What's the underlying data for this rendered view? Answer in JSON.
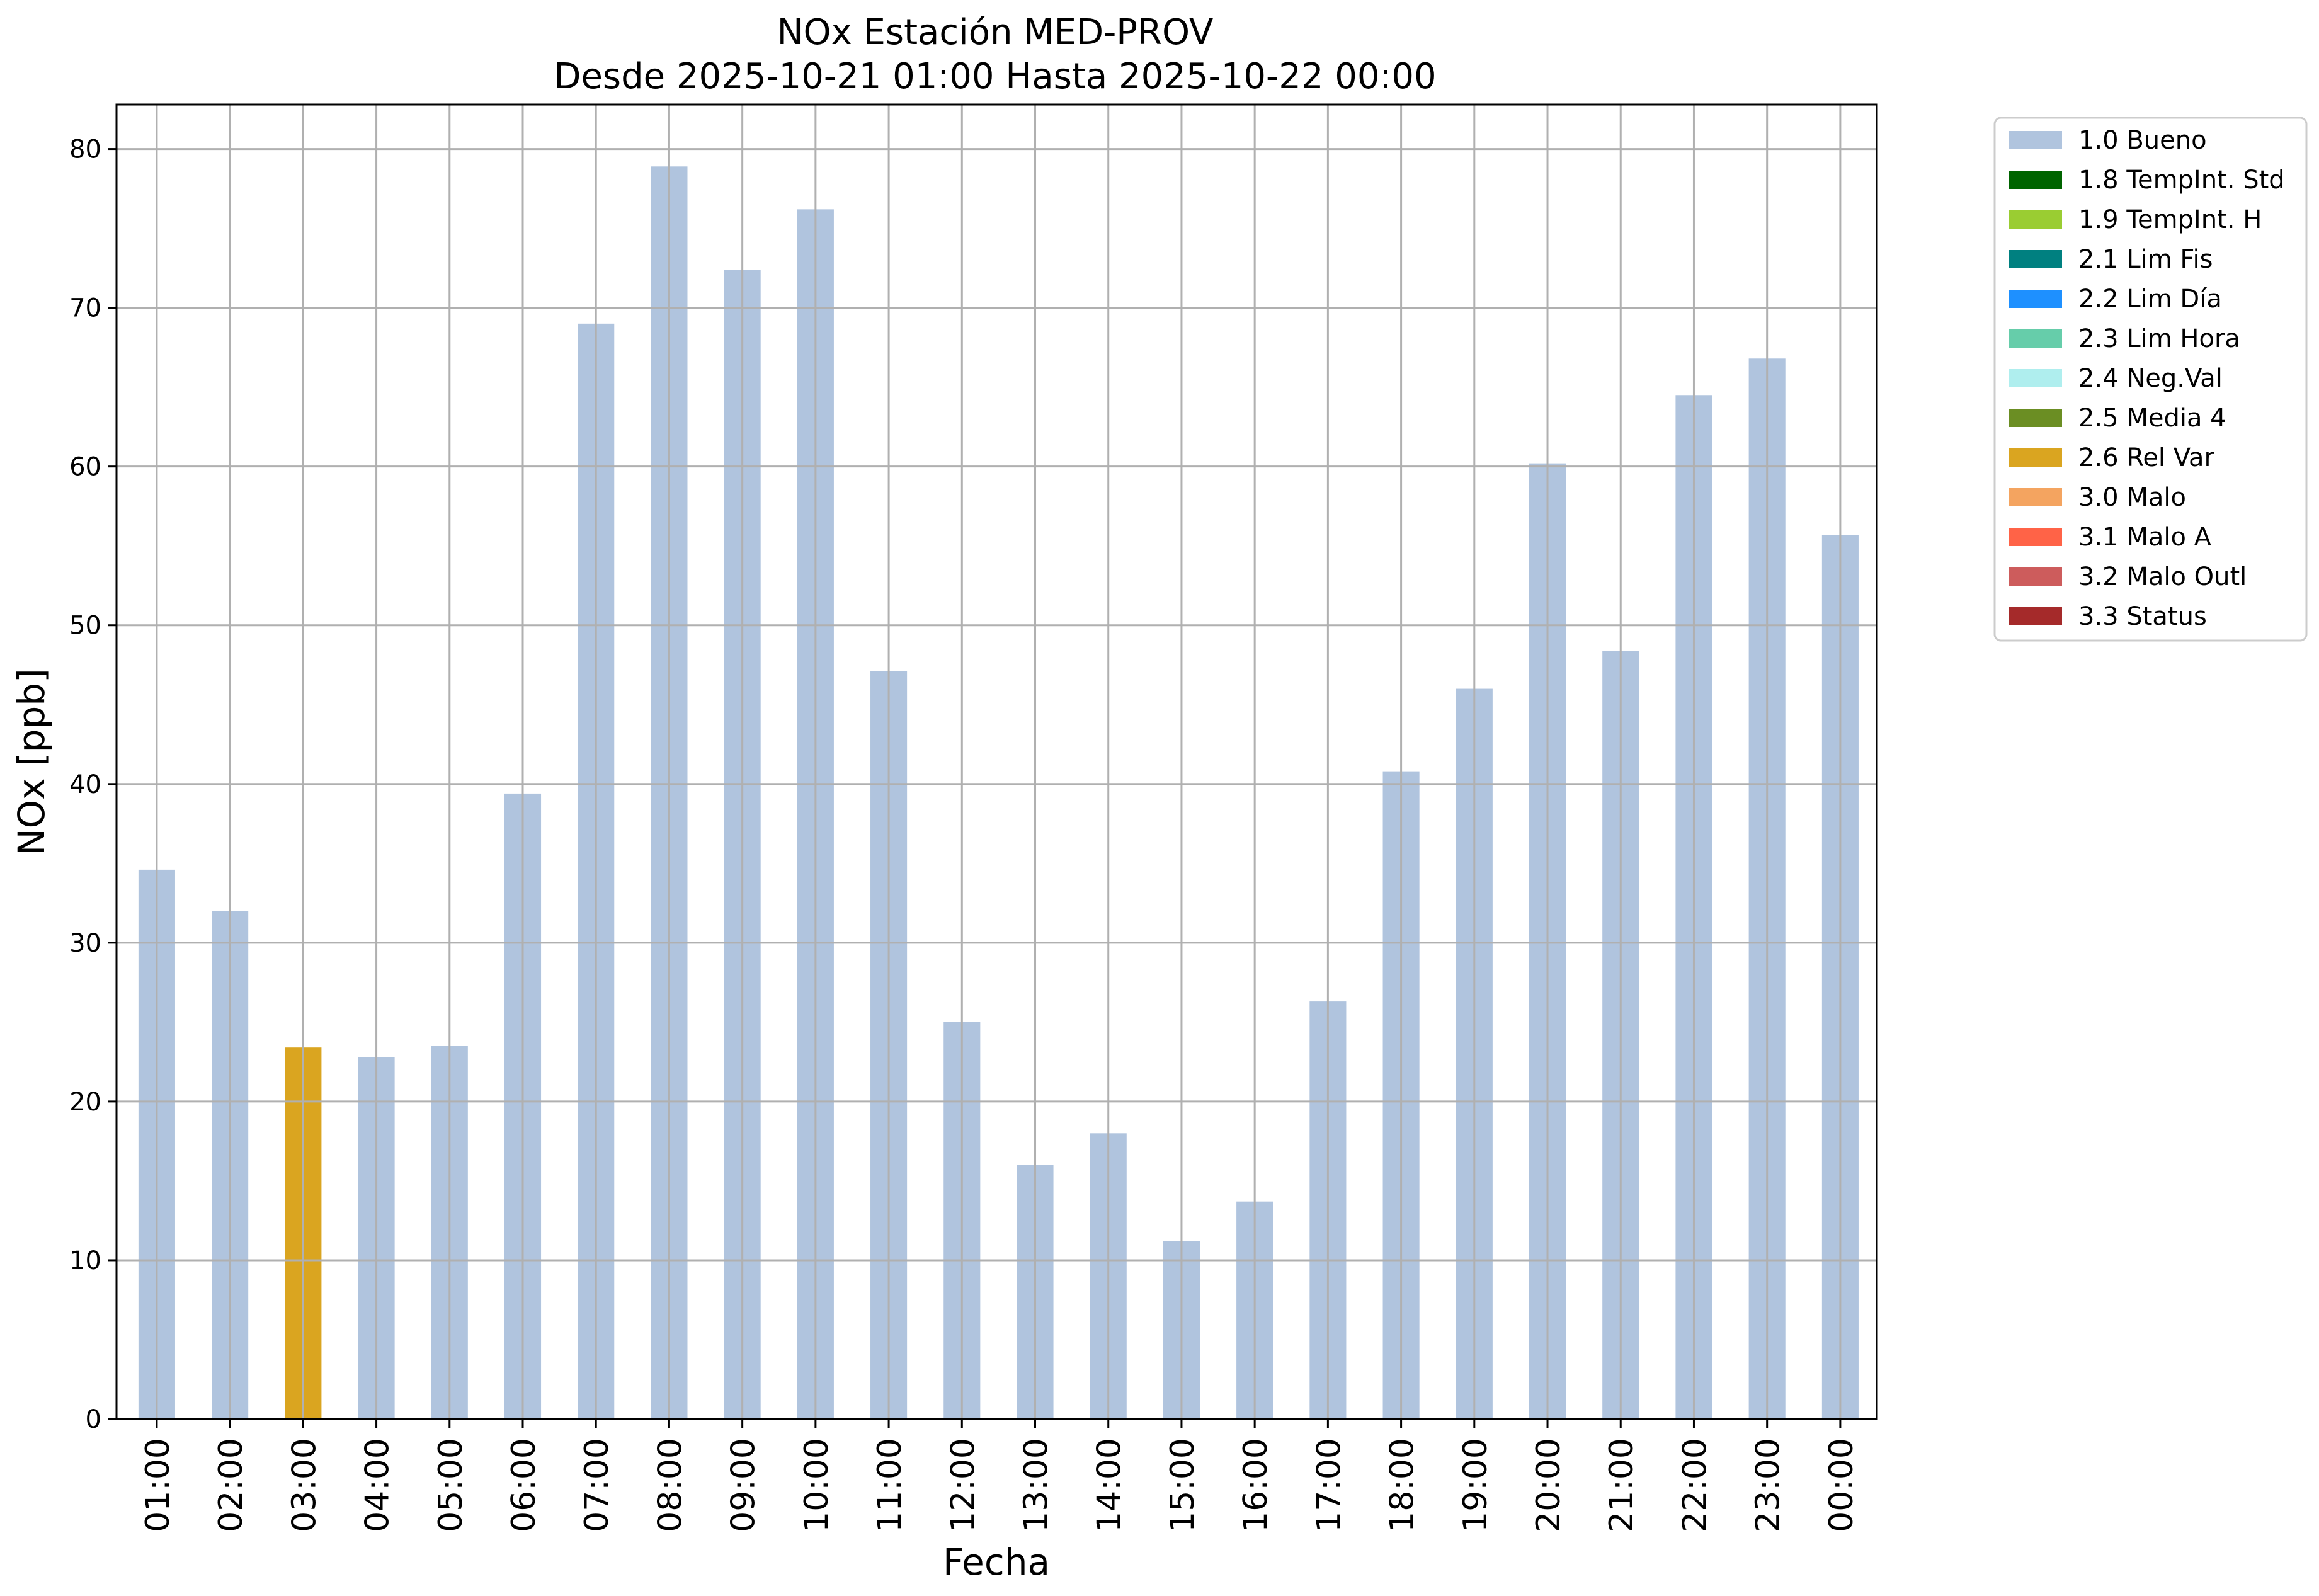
{
  "chart_data": {
    "type": "bar",
    "title": "NOx Estación MED-PROV",
    "subtitle": "Desde 2025-10-21 01:00 Hasta 2025-10-22 00:00",
    "xlabel": "Fecha",
    "ylabel": "NOx [ppb]",
    "ylim": [
      0,
      82.8
    ],
    "yticks": [
      0,
      10,
      20,
      30,
      40,
      50,
      60,
      70,
      80
    ],
    "grid": true,
    "legend_position": "outside-right",
    "categories": [
      "01:00",
      "02:00",
      "03:00",
      "04:00",
      "05:00",
      "06:00",
      "07:00",
      "08:00",
      "09:00",
      "10:00",
      "11:00",
      "12:00",
      "13:00",
      "14:00",
      "15:00",
      "16:00",
      "17:00",
      "18:00",
      "19:00",
      "20:00",
      "21:00",
      "22:00",
      "23:00",
      "00:00"
    ],
    "values": [
      34.6,
      32.0,
      23.4,
      22.8,
      23.5,
      39.4,
      69.0,
      78.9,
      72.4,
      76.2,
      47.1,
      25.0,
      16.0,
      18.0,
      11.2,
      13.7,
      26.3,
      40.8,
      46.0,
      60.2,
      48.4,
      64.5,
      66.8,
      55.7
    ],
    "flags": [
      "1.0 Bueno",
      "1.0 Bueno",
      "2.6 Rel Var",
      "1.0 Bueno",
      "1.0 Bueno",
      "1.0 Bueno",
      "1.0 Bueno",
      "1.0 Bueno",
      "1.0 Bueno",
      "1.0 Bueno",
      "1.0 Bueno",
      "1.0 Bueno",
      "1.0 Bueno",
      "1.0 Bueno",
      "1.0 Bueno",
      "1.0 Bueno",
      "1.0 Bueno",
      "1.0 Bueno",
      "1.0 Bueno",
      "1.0 Bueno",
      "1.0 Bueno",
      "1.0 Bueno",
      "1.0 Bueno",
      "1.0 Bueno"
    ],
    "legend": [
      {
        "label": "1.0 Bueno",
        "color": "#b0c4de"
      },
      {
        "label": "1.8 TempInt. Std",
        "color": "#006400"
      },
      {
        "label": "1.9 TempInt. H",
        "color": "#9acd32"
      },
      {
        "label": "2.1 Lim Fis",
        "color": "#008080"
      },
      {
        "label": "2.2 Lim Día",
        "color": "#1e90ff"
      },
      {
        "label": "2.3 Lim Hora",
        "color": "#66cdaa"
      },
      {
        "label": "2.4 Neg.Val",
        "color": "#afeeee"
      },
      {
        "label": "2.5 Media 4",
        "color": "#6b8e23"
      },
      {
        "label": "2.6 Rel Var",
        "color": "#daa520"
      },
      {
        "label": "3.0 Malo",
        "color": "#f4a460"
      },
      {
        "label": "3.1 Malo A",
        "color": "#ff6347"
      },
      {
        "label": "3.2 Malo Outl",
        "color": "#cd5c5c"
      },
      {
        "label": "3.3 Status",
        "color": "#a52a2a"
      }
    ]
  }
}
